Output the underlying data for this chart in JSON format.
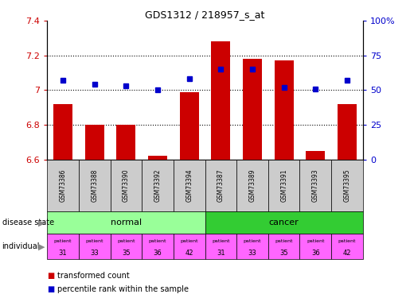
{
  "title": "GDS1312 / 218957_s_at",
  "samples": [
    "GSM73386",
    "GSM73388",
    "GSM73390",
    "GSM73392",
    "GSM73394",
    "GSM73387",
    "GSM73389",
    "GSM73391",
    "GSM73393",
    "GSM73395"
  ],
  "transformed_counts": [
    6.92,
    6.8,
    6.8,
    6.62,
    6.99,
    7.28,
    7.18,
    7.17,
    6.65,
    6.92
  ],
  "percentile_ranks": [
    57,
    54,
    53,
    50,
    58,
    65,
    65,
    52,
    51,
    57
  ],
  "ylim_left": [
    6.6,
    7.4
  ],
  "ylim_right": [
    0,
    100
  ],
  "yticks_left": [
    6.6,
    6.8,
    7.0,
    7.2,
    7.4
  ],
  "yticks_left_labels": [
    "6.6",
    "6.8",
    "7",
    "7.2",
    "7.4"
  ],
  "yticks_right": [
    0,
    25,
    50,
    75,
    100
  ],
  "yticks_right_labels": [
    "0",
    "25",
    "50",
    "75",
    "100%"
  ],
  "bar_color": "#cc0000",
  "dot_color": "#0000cc",
  "normal_color": "#99ff99",
  "cancer_color": "#33cc33",
  "patient_color": "#ff66ff",
  "sample_box_color": "#cccccc",
  "left_label_color": "#cc0000",
  "right_label_color": "#0000cc",
  "patients_normal": [
    31,
    33,
    35,
    36,
    42
  ],
  "patients_cancer": [
    31,
    33,
    35,
    36,
    42
  ],
  "grid_dotted_at": [
    6.8,
    7.0,
    7.2
  ]
}
